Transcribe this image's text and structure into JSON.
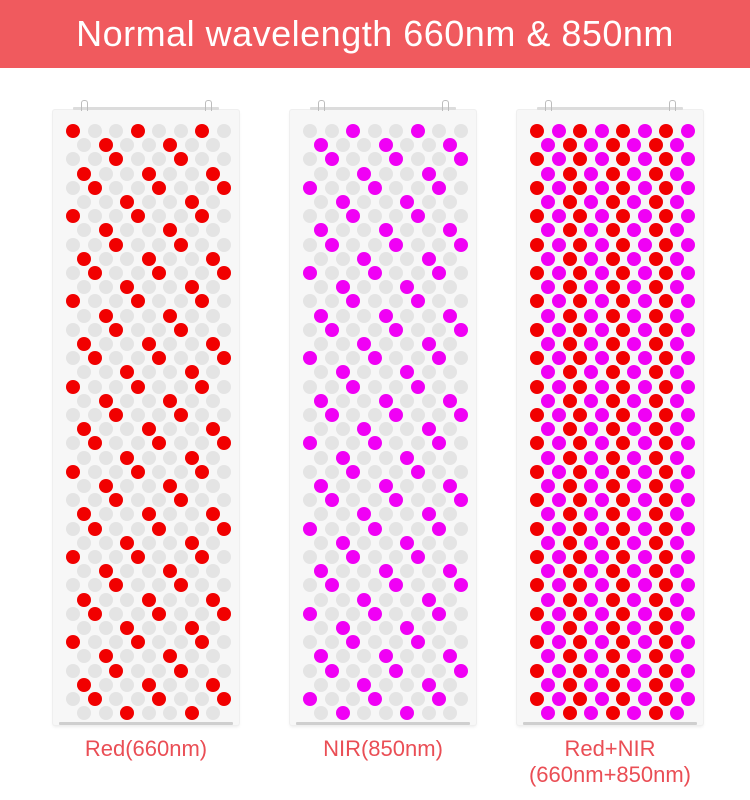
{
  "banner": {
    "title": "Normal wavelength 660nm & 850nm"
  },
  "colors": {
    "banner_bg": "#f05a5e",
    "red_led": "#f10000",
    "nir_led": "#f000f5",
    "off_led": "#e4e4e4",
    "caption_text": "#ea4e55"
  },
  "panels": [
    {
      "id": "red",
      "caption_lines": [
        "Red(660nm)"
      ],
      "led_type": "red-only"
    },
    {
      "id": "nir",
      "caption_lines": [
        "NIR(850nm)"
      ],
      "led_type": "nir-only"
    },
    {
      "id": "combo",
      "caption_lines": [
        "Red+NIR",
        "(660nm+850nm)"
      ],
      "led_type": "red-and-nir"
    }
  ]
}
